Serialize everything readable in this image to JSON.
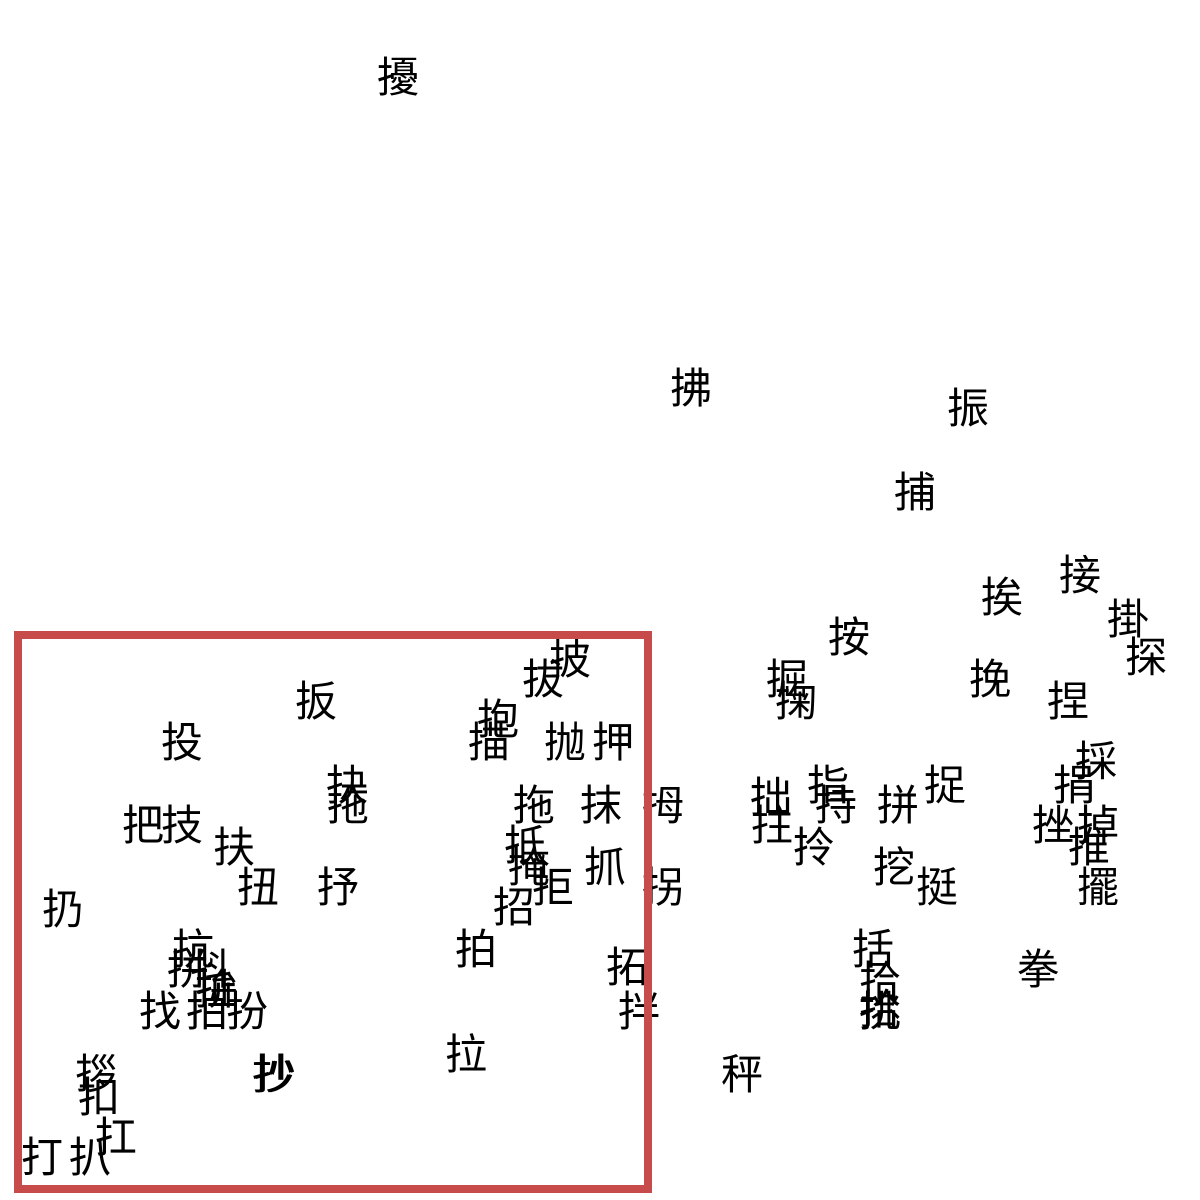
{
  "characters": [
    "擾",
    "拂",
    "振",
    "捕",
    "接",
    "挨",
    "掛",
    "探",
    "按",
    "披",
    "拔",
    "扳",
    "掘",
    "挽",
    "捏",
    "抱",
    "掬",
    "投",
    "描",
    "抛",
    "押",
    "採",
    "指",
    "捉",
    "捐",
    "抉",
    "拖",
    "抹",
    "拇",
    "拙",
    "持",
    "拼",
    "把",
    "技",
    "挫",
    "掉",
    "抵",
    "拖",
    "扶",
    "拄",
    "拎",
    "推",
    "扭",
    "抒",
    "挖",
    "挺",
    "掩",
    "擺",
    "扔",
    "拒",
    "招",
    "拐",
    "抓",
    "拾",
    "拍",
    "括",
    "拓",
    "抗",
    "抖",
    "拼",
    "拳",
    "拚",
    "抄",
    "拌",
    "拉",
    "拾",
    "找",
    "拍",
    "扮",
    "拶",
    "挑",
    "扯",
    "扣",
    "抄",
    "秤",
    "扛",
    "打",
    "扒"
  ],
  "colors": {
    "selection_box": "#c84b4b",
    "text": "#000000",
    "background": "#ffffff"
  }
}
